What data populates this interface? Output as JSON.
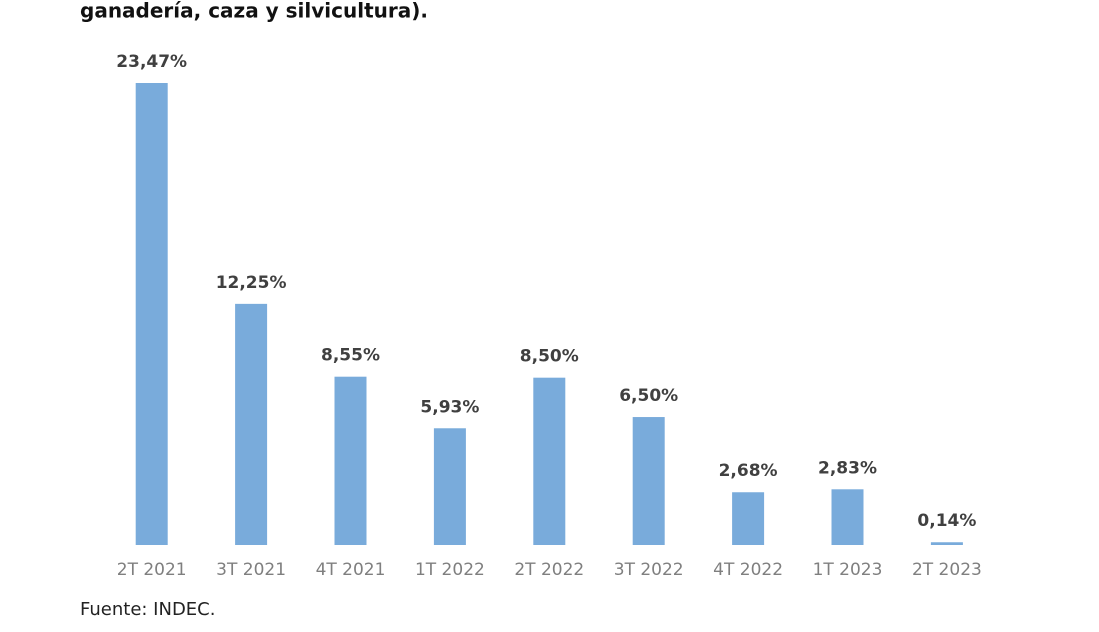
{
  "chart_data": {
    "type": "bar",
    "title": "ganadería, caza y silvicultura).",
    "categories": [
      "2T 2021",
      "3T 2021",
      "4T 2021",
      "1T 2022",
      "2T 2022",
      "3T 2022",
      "4T 2022",
      "1T 2023",
      "2T 2023"
    ],
    "values": [
      23.47,
      12.25,
      8.55,
      5.93,
      8.5,
      6.5,
      2.68,
      2.83,
      0.14
    ],
    "value_labels": [
      "23,47%",
      "12,25%",
      "8,55%",
      "5,93%",
      "8,50%",
      "6,50%",
      "2,68%",
      "2,83%",
      "0,14%"
    ],
    "color": "#79abdb",
    "source": "Fuente: INDEC."
  }
}
